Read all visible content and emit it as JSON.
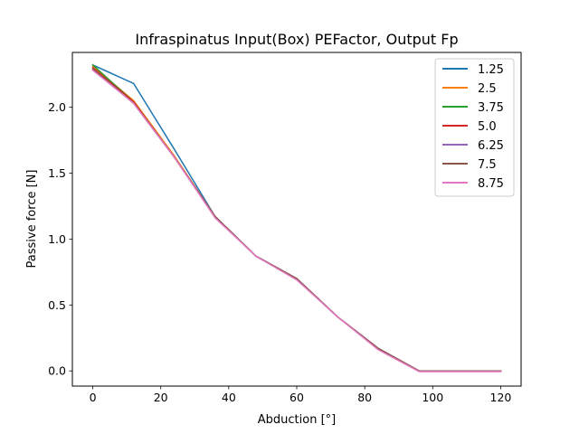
{
  "chart_data": {
    "type": "line",
    "title": "Infraspinatus Input(Box) PEFactor, Output Fp",
    "xlabel": "Abduction [°]",
    "ylabel": "Passive force [N]",
    "xlim": [
      -6,
      126
    ],
    "ylim": [
      -0.115,
      2.415
    ],
    "xticks": [
      0,
      20,
      40,
      60,
      80,
      100,
      120
    ],
    "yticks": [
      0.0,
      0.5,
      1.0,
      1.5,
      2.0
    ],
    "xtick_labels": [
      "0",
      "20",
      "40",
      "60",
      "80",
      "100",
      "120"
    ],
    "ytick_labels": [
      "0.0",
      "0.5",
      "1.0",
      "1.5",
      "2.0"
    ],
    "grid": false,
    "legend_position": "top-right",
    "x": [
      0,
      12,
      24,
      36,
      48,
      60,
      72,
      84,
      96,
      108,
      120
    ],
    "series": [
      {
        "name": "1.25",
        "color": "#1f77b4",
        "values": [
          2.32,
          2.18,
          1.68,
          1.17,
          0.87,
          0.7,
          0.41,
          0.17,
          0.0,
          0.0,
          0.0
        ]
      },
      {
        "name": "2.5",
        "color": "#ff7f0e",
        "values": [
          2.31,
          2.05,
          1.63,
          1.17,
          0.87,
          0.7,
          0.41,
          0.17,
          0.0,
          0.0,
          0.0
        ]
      },
      {
        "name": "3.75",
        "color": "#2ca02c",
        "values": [
          2.32,
          2.04,
          1.62,
          1.17,
          0.87,
          0.7,
          0.41,
          0.17,
          0.0,
          0.0,
          0.0
        ]
      },
      {
        "name": "5.0",
        "color": "#d62728",
        "values": [
          2.3,
          2.04,
          1.62,
          1.17,
          0.87,
          0.7,
          0.41,
          0.17,
          0.0,
          0.0,
          0.0
        ]
      },
      {
        "name": "6.25",
        "color": "#9467bd",
        "values": [
          2.29,
          2.03,
          1.62,
          1.17,
          0.87,
          0.7,
          0.41,
          0.17,
          0.0,
          0.0,
          0.0
        ]
      },
      {
        "name": "7.5",
        "color": "#8c564b",
        "values": [
          2.29,
          2.03,
          1.62,
          1.17,
          0.87,
          0.7,
          0.41,
          0.17,
          0.0,
          0.0,
          0.0
        ]
      },
      {
        "name": "8.75",
        "color": "#e377c2",
        "values": [
          2.28,
          2.03,
          1.62,
          1.16,
          0.87,
          0.69,
          0.41,
          0.16,
          -0.005,
          -0.005,
          -0.005
        ]
      }
    ]
  }
}
